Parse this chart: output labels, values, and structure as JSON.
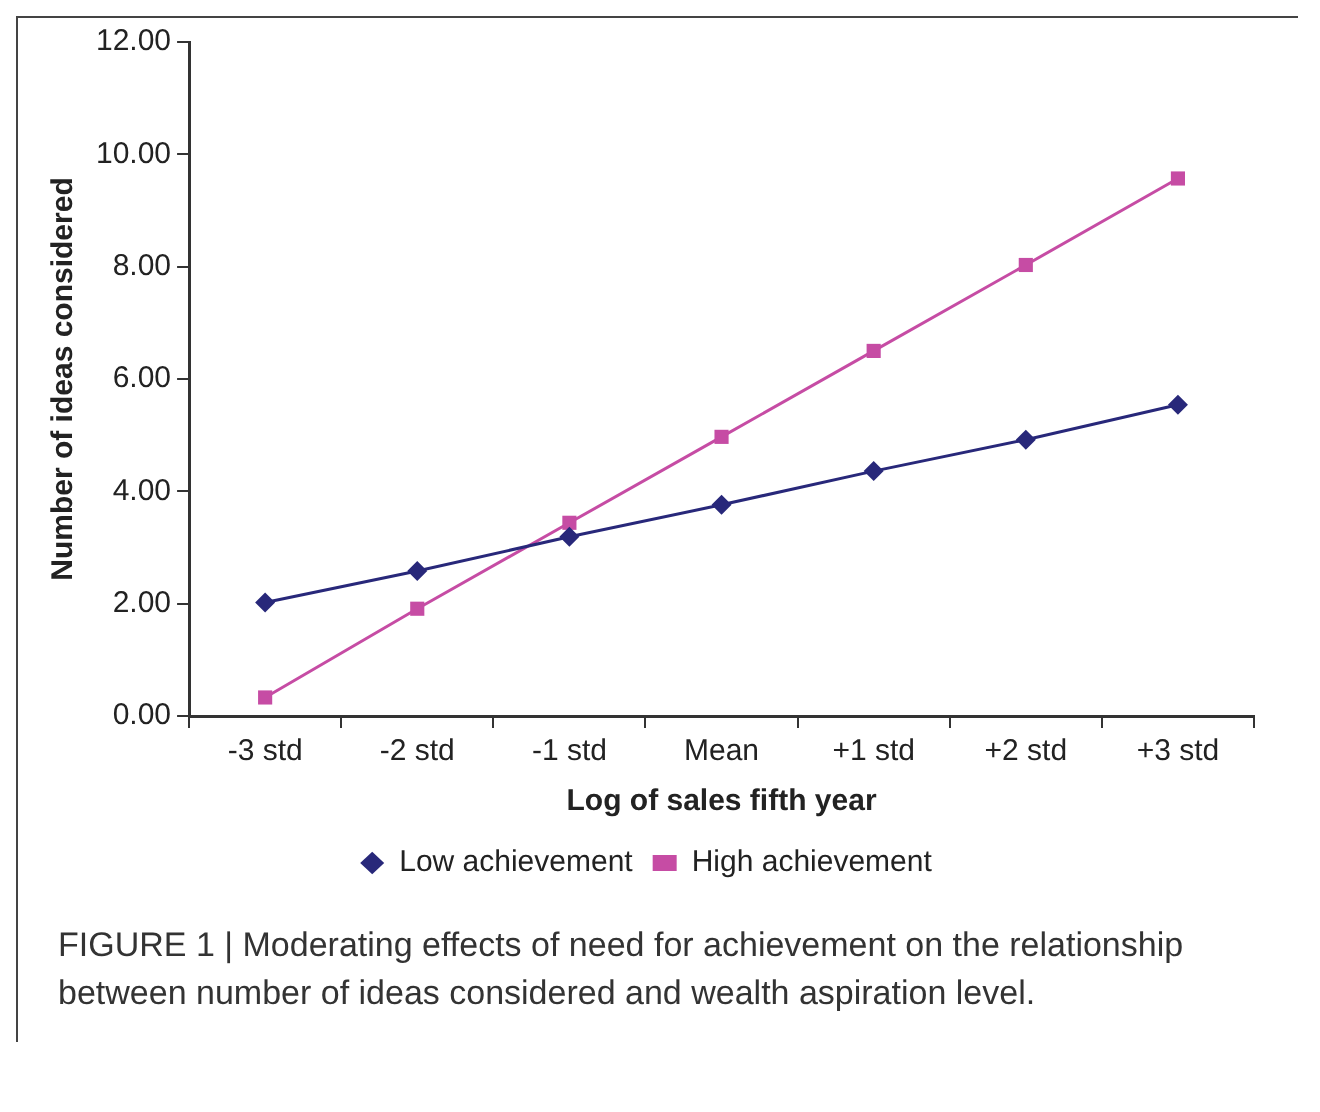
{
  "chart_data": {
    "type": "line",
    "xlabel": "Log of sales fifth year",
    "ylabel": "Number of ideas considered",
    "categories": [
      "-3 std",
      "-2 std",
      "-1 std",
      "Mean",
      "+1 std",
      "+2 std",
      "+3 std"
    ],
    "series": [
      {
        "name": "Low achievement",
        "color": "#28287a",
        "marker": "diamond",
        "values": [
          2.02,
          2.58,
          3.19,
          3.76,
          4.36,
          4.92,
          5.54
        ]
      },
      {
        "name": "High achievement",
        "color": "#c64ca4",
        "marker": "square",
        "values": [
          0.33,
          1.91,
          3.44,
          4.97,
          6.5,
          8.03,
          9.57
        ]
      }
    ],
    "ylim": [
      0,
      12
    ],
    "yticks": [
      {
        "value": 0,
        "label": "0.00"
      },
      {
        "value": 2,
        "label": "2.00"
      },
      {
        "value": 4,
        "label": "4.00"
      },
      {
        "value": 6,
        "label": "6.00"
      },
      {
        "value": 8,
        "label": "8.00"
      },
      {
        "value": 10,
        "label": "10.00"
      },
      {
        "value": 12,
        "label": "12.00"
      }
    ],
    "grid": false,
    "legend": "bottom",
    "line_style": "solid",
    "annotations": [
      "FIGURE 1 | Moderating effects of need for achievement on the relationship between number of ideas considered and wealth aspiration level."
    ]
  }
}
